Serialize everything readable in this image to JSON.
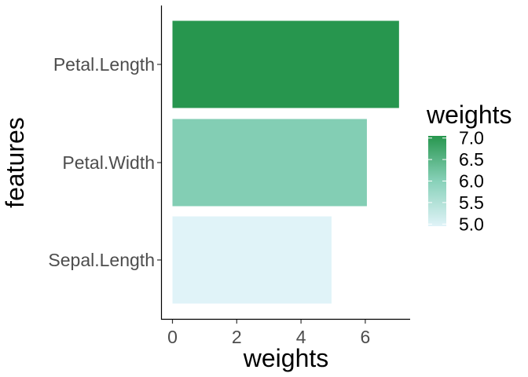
{
  "chart_data": {
    "type": "bar",
    "orientation": "horizontal",
    "categories": [
      "Petal.Length",
      "Petal.Width",
      "Sepal.Length"
    ],
    "values": [
      7.05,
      6.05,
      4.95
    ],
    "xlabel": "weights",
    "ylabel": "features",
    "xlim": [
      0,
      7.4
    ],
    "x_ticks": [
      "0",
      "2",
      "4",
      "6"
    ],
    "grid": false,
    "legend": {
      "title": "weights",
      "type": "colorbar",
      "placement": "right",
      "labels": [
        "7.0",
        "6.5",
        "6.0",
        "5.5",
        "5.0"
      ],
      "range": [
        4.95,
        7.05
      ]
    },
    "colors": {
      "low": "#e0f3f8",
      "mid": "#88d1b9",
      "high": "#27964e"
    }
  }
}
